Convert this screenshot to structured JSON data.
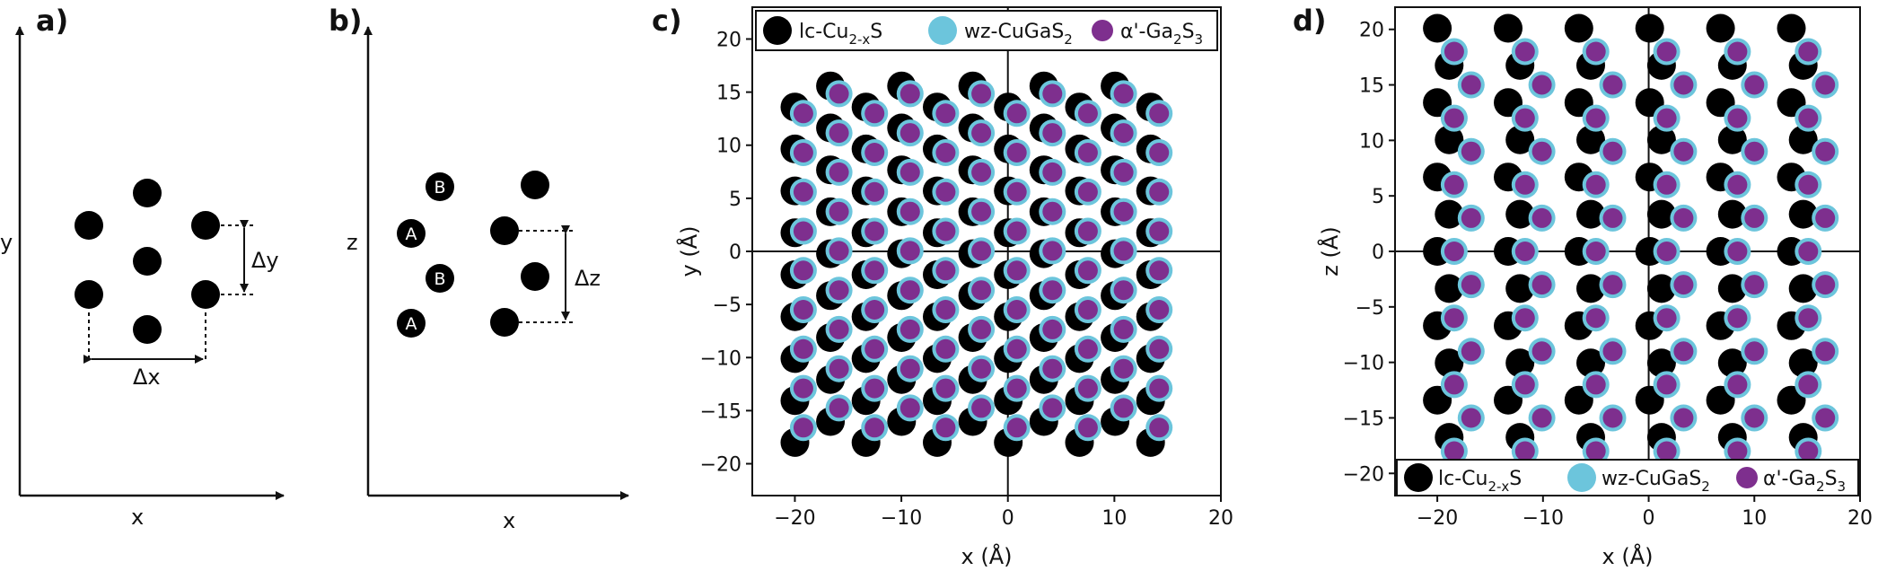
{
  "panels": [
    {
      "id": "a",
      "label": "a)",
      "xlabel": "x",
      "ylabel": "y",
      "dims": [
        "Δx",
        "Δy"
      ]
    },
    {
      "id": "b",
      "label": "b)",
      "xlabel": "x",
      "ylabel": "z",
      "layers": [
        "B",
        "A",
        "B",
        "A"
      ],
      "dims": [
        "Δz"
      ]
    }
  ],
  "colors": {
    "lc": "#000000",
    "wz": "#6cc5dc",
    "alpha": "#7e2f8e"
  },
  "legend": {
    "lc": {
      "pre": "lc-Cu",
      "sub": "2-x",
      "post": "S"
    },
    "wz": {
      "pre": "wz-CuGaS",
      "sub": "2",
      "post": ""
    },
    "alpha": {
      "pre": "α'-Ga",
      "sub": "2",
      "mid": "S",
      "sub2": "3"
    }
  },
  "chart_data": [
    {
      "type": "scatter",
      "panel_label": "c)",
      "xlabel": "x (Å)",
      "ylabel": "y (Å)",
      "xlim": [
        -24,
        20
      ],
      "ylim": [
        -23,
        23
      ],
      "xticks": [
        -20,
        -10,
        0,
        10,
        20
      ],
      "yticks": [
        -20,
        -15,
        -10,
        -5,
        0,
        5,
        10,
        15,
        20
      ],
      "legend_position": "top",
      "series": [
        {
          "name": "lc-Cu2-xS",
          "lattice": {
            "columns_x_step": 3.34,
            "columns_x_range": [
              -20.0,
              16.7
            ],
            "row_y_step": 3.95,
            "alt_column_y_offset": 1.98,
            "y_range": [
              -18.0,
              16.0
            ]
          }
        },
        {
          "name": "wz-CuGaS2",
          "lattice": {
            "columns_x_step": 3.34,
            "columns_x_range": [
              -19.2,
              15.9
            ],
            "row_y_step": 3.7,
            "alt_column_y_offset": 1.85,
            "y_range": [
              -16.6,
              15.0
            ]
          }
        },
        {
          "name": "α'-Ga2S3",
          "lattice": {
            "columns_x_step": 3.34,
            "columns_x_range": [
              -19.2,
              15.9
            ],
            "row_y_step": 3.7,
            "alt_column_y_offset": 1.85,
            "y_range": [
              -16.6,
              15.0
            ]
          }
        }
      ]
    },
    {
      "type": "scatter",
      "panel_label": "d)",
      "xlabel": "x (Å)",
      "ylabel": "z (Å)",
      "xlim": [
        -24,
        20
      ],
      "ylim": [
        -22,
        22
      ],
      "xticks": [
        -20,
        -10,
        0,
        10,
        20
      ],
      "yticks": [
        -20,
        -15,
        -10,
        -5,
        0,
        5,
        10,
        15,
        20
      ],
      "legend_position": "bottom",
      "series": [
        {
          "name": "lc-Cu2-xS",
          "lattice": {
            "column_x_step": 6.7,
            "columns_x_range": [
              -20.0,
              13.5
            ],
            "row_z_step": 6.7,
            "layer_shift": [
              1.12,
              -3.35
            ]
          }
        },
        {
          "name": "wz-CuGaS2",
          "lattice": {
            "column_x_step": 6.7,
            "columns_x_range": [
              -18.4,
              15.1
            ],
            "row_z_step": 6.0,
            "layer_shift": [
              1.6,
              -3.0
            ]
          }
        },
        {
          "name": "α'-Ga2S3",
          "lattice": {
            "column_x_step": 6.7,
            "columns_x_range": [
              -18.4,
              15.1
            ],
            "row_z_step": 6.0,
            "layer_shift": [
              1.6,
              -3.0
            ]
          }
        }
      ]
    }
  ]
}
